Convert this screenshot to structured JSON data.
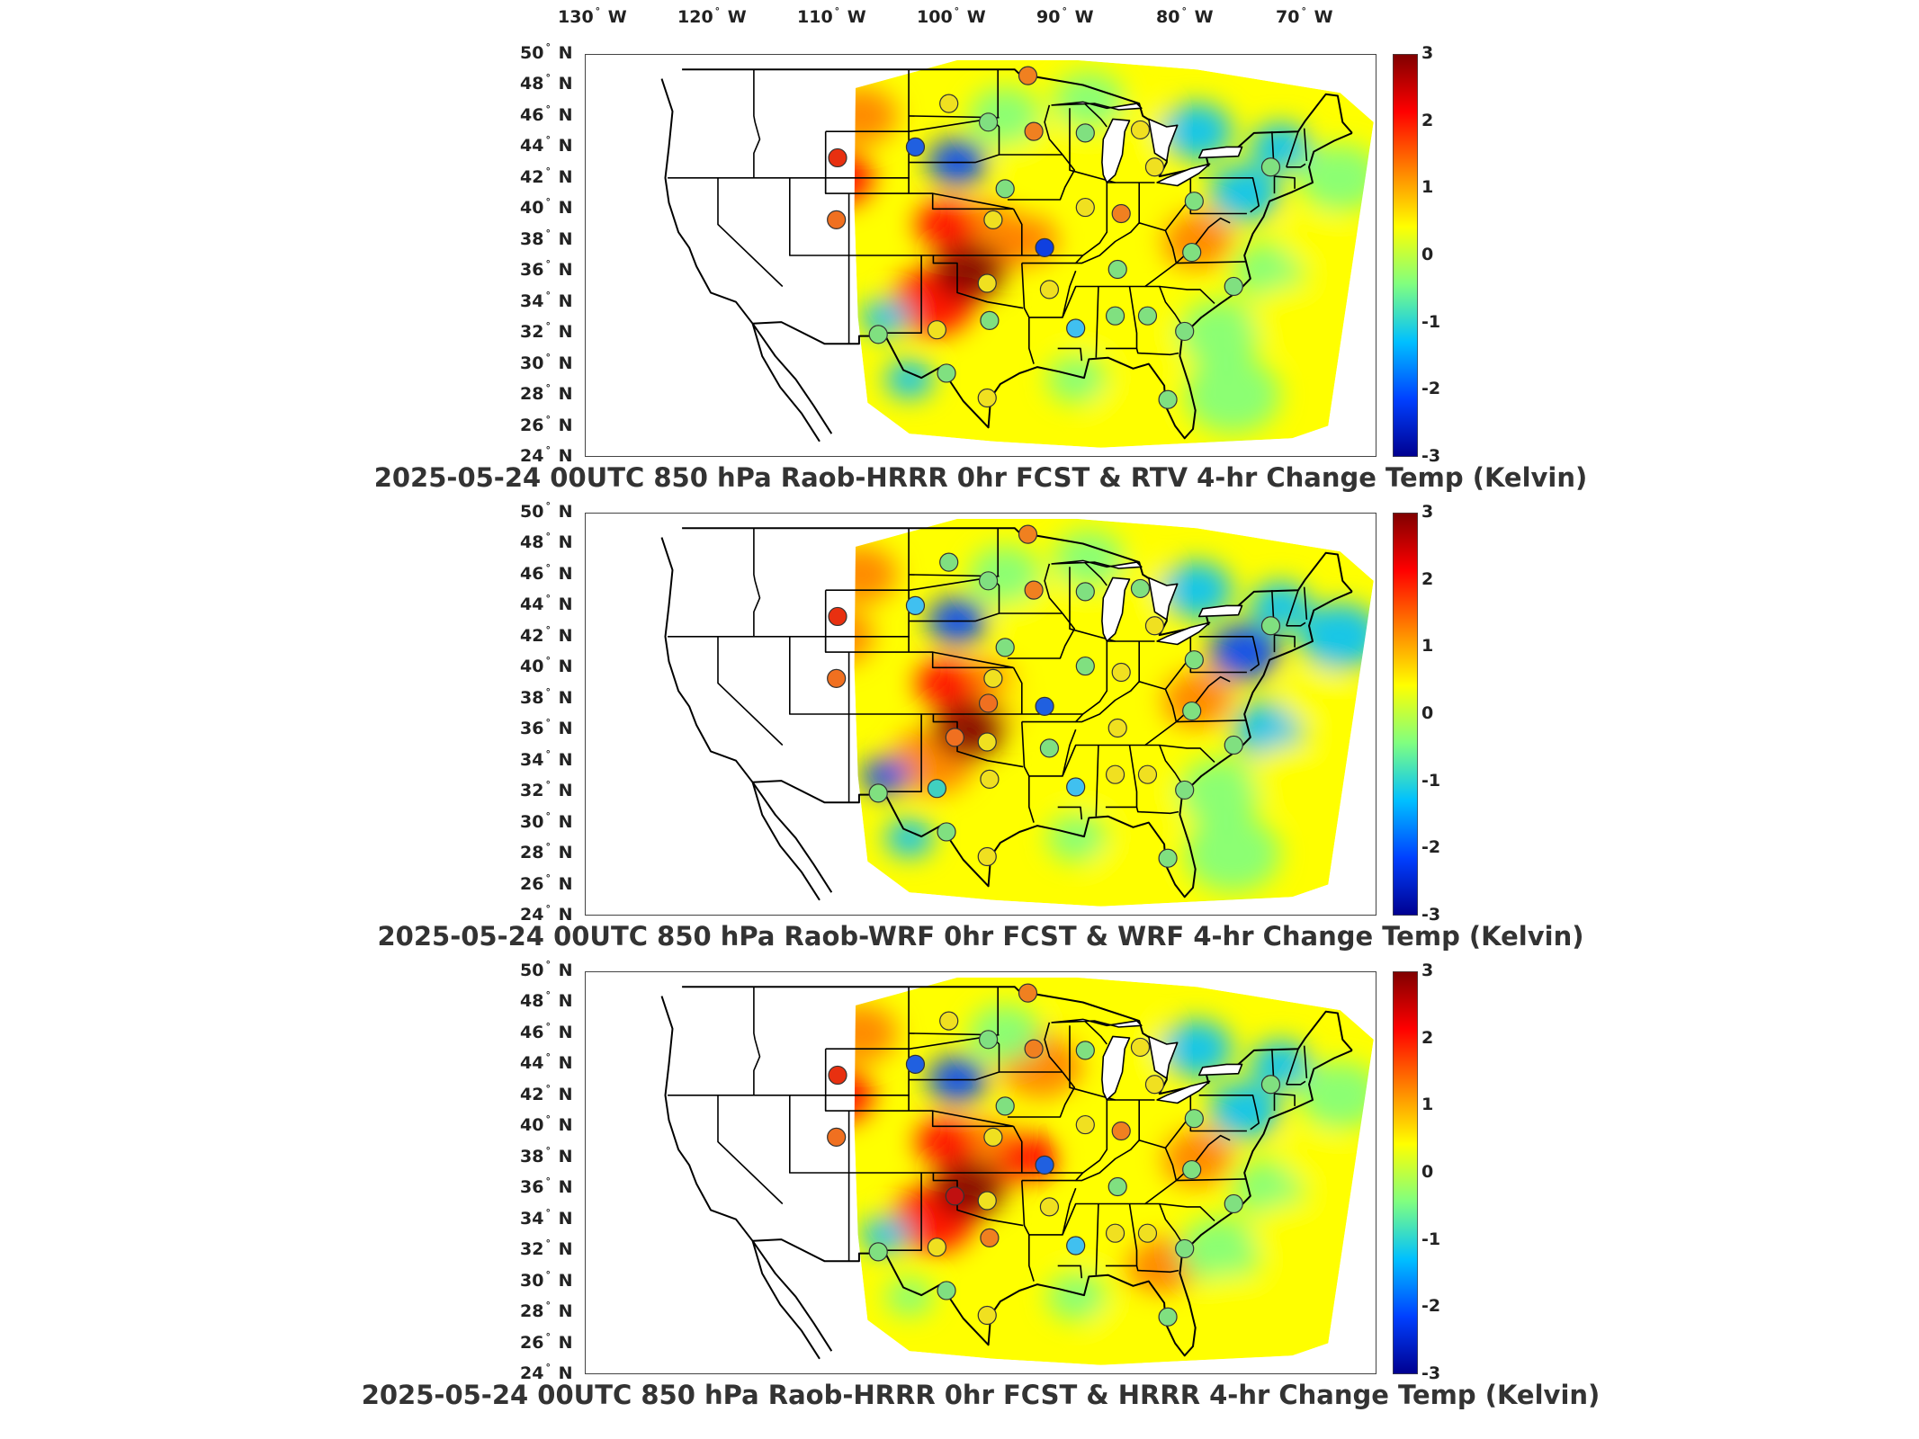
{
  "figure": {
    "lon_labels": [
      "130",
      "120",
      "110",
      "100",
      "90",
      "80",
      "70"
    ],
    "lon_suffix": "W",
    "lat_labels": [
      "50",
      "48",
      "46",
      "44",
      "42",
      "40",
      "38",
      "36",
      "34",
      "32",
      "30",
      "28",
      "26",
      "24"
    ],
    "lat_suffix": "N",
    "degree_symbol": "°",
    "colorbar_ticks": [
      "3",
      "2",
      "1",
      "0",
      "-1",
      "-2",
      "-3"
    ],
    "colormap": [
      "#7f0000",
      "#ff0000",
      "#ff8000",
      "#ffff00",
      "#80ff80",
      "#00c0ff",
      "#0040ff",
      "#00008f"
    ]
  },
  "panels": [
    {
      "title": "2025-05-24 00UTC 850 hPa Raob-HRRR 0hr FCST & RTV 4-hr Change Temp (Kelvin)",
      "stations": [
        {
          "lon": -110.0,
          "lat": 43.3,
          "color": "#e83010"
        },
        {
          "lon": -110.1,
          "lat": 39.3,
          "color": "#f07020"
        },
        {
          "lon": -103.5,
          "lat": 44.0,
          "color": "#2060e0"
        },
        {
          "lon": -100.7,
          "lat": 46.8,
          "color": "#f0e020"
        },
        {
          "lon": -97.4,
          "lat": 45.6,
          "color": "#80e080"
        },
        {
          "lon": -94.1,
          "lat": 48.6,
          "color": "#f08020"
        },
        {
          "lon": -93.6,
          "lat": 45.0,
          "color": "#f08020"
        },
        {
          "lon": -89.3,
          "lat": 44.9,
          "color": "#80e080"
        },
        {
          "lon": -84.7,
          "lat": 45.1,
          "color": "#f0e020"
        },
        {
          "lon": -83.5,
          "lat": 42.7,
          "color": "#f0e020"
        },
        {
          "lon": -73.8,
          "lat": 42.7,
          "color": "#80e080"
        },
        {
          "lon": -96.0,
          "lat": 41.3,
          "color": "#80e080"
        },
        {
          "lon": -89.3,
          "lat": 40.1,
          "color": "#f0e020"
        },
        {
          "lon": -86.3,
          "lat": 39.7,
          "color": "#f08020"
        },
        {
          "lon": -80.2,
          "lat": 40.5,
          "color": "#80e080"
        },
        {
          "lon": -97.0,
          "lat": 39.3,
          "color": "#f0e020"
        },
        {
          "lon": -92.7,
          "lat": 37.5,
          "color": "#1040e0"
        },
        {
          "lon": -97.5,
          "lat": 35.2,
          "color": "#f0e020"
        },
        {
          "lon": -92.3,
          "lat": 34.8,
          "color": "#f0e020"
        },
        {
          "lon": -86.6,
          "lat": 36.1,
          "color": "#80e080"
        },
        {
          "lon": -80.4,
          "lat": 37.2,
          "color": "#80e080"
        },
        {
          "lon": -101.7,
          "lat": 32.2,
          "color": "#f0e020"
        },
        {
          "lon": -97.3,
          "lat": 32.8,
          "color": "#80e080"
        },
        {
          "lon": -90.1,
          "lat": 32.3,
          "color": "#40c0f0"
        },
        {
          "lon": -86.8,
          "lat": 33.1,
          "color": "#80e080"
        },
        {
          "lon": -84.1,
          "lat": 33.1,
          "color": "#80e080"
        },
        {
          "lon": -81.0,
          "lat": 32.1,
          "color": "#80e080"
        },
        {
          "lon": -106.6,
          "lat": 31.9,
          "color": "#80e080"
        },
        {
          "lon": -100.9,
          "lat": 29.4,
          "color": "#80e080"
        },
        {
          "lon": -97.5,
          "lat": 27.8,
          "color": "#f0e020"
        },
        {
          "lon": -82.4,
          "lat": 27.7,
          "color": "#80e080"
        },
        {
          "lon": -76.9,
          "lat": 35.0,
          "color": "#80e080"
        }
      ]
    },
    {
      "title": "2025-05-24 00UTC 850 hPa Raob-WRF 0hr FCST & WRF 4-hr Change Temp (Kelvin)",
      "stations": [
        {
          "lon": -110.0,
          "lat": 43.3,
          "color": "#e83010"
        },
        {
          "lon": -110.1,
          "lat": 39.3,
          "color": "#f07020"
        },
        {
          "lon": -103.5,
          "lat": 44.0,
          "color": "#40c0f0"
        },
        {
          "lon": -100.7,
          "lat": 46.8,
          "color": "#80e080"
        },
        {
          "lon": -97.4,
          "lat": 45.6,
          "color": "#80e080"
        },
        {
          "lon": -94.1,
          "lat": 48.6,
          "color": "#f08020"
        },
        {
          "lon": -93.6,
          "lat": 45.0,
          "color": "#f08020"
        },
        {
          "lon": -89.3,
          "lat": 44.9,
          "color": "#80e080"
        },
        {
          "lon": -84.7,
          "lat": 45.1,
          "color": "#80e080"
        },
        {
          "lon": -83.5,
          "lat": 42.7,
          "color": "#f0e020"
        },
        {
          "lon": -73.8,
          "lat": 42.7,
          "color": "#80e080"
        },
        {
          "lon": -96.0,
          "lat": 41.3,
          "color": "#80e080"
        },
        {
          "lon": -89.3,
          "lat": 40.1,
          "color": "#80e080"
        },
        {
          "lon": -86.3,
          "lat": 39.7,
          "color": "#f0e020"
        },
        {
          "lon": -80.2,
          "lat": 40.5,
          "color": "#80e080"
        },
        {
          "lon": -97.0,
          "lat": 39.3,
          "color": "#f0e020"
        },
        {
          "lon": -92.7,
          "lat": 37.5,
          "color": "#2060e0"
        },
        {
          "lon": -97.5,
          "lat": 35.2,
          "color": "#f0e020"
        },
        {
          "lon": -92.3,
          "lat": 34.8,
          "color": "#80e080"
        },
        {
          "lon": -86.6,
          "lat": 36.1,
          "color": "#f0e020"
        },
        {
          "lon": -80.4,
          "lat": 37.2,
          "color": "#80e080"
        },
        {
          "lon": -101.7,
          "lat": 32.2,
          "color": "#40d0c0"
        },
        {
          "lon": -97.3,
          "lat": 32.8,
          "color": "#f0e020"
        },
        {
          "lon": -90.1,
          "lat": 32.3,
          "color": "#40c0f0"
        },
        {
          "lon": -86.8,
          "lat": 33.1,
          "color": "#f0e020"
        },
        {
          "lon": -84.1,
          "lat": 33.1,
          "color": "#f0e020"
        },
        {
          "lon": -81.0,
          "lat": 32.1,
          "color": "#80e080"
        },
        {
          "lon": -106.6,
          "lat": 31.9,
          "color": "#80e080"
        },
        {
          "lon": -100.9,
          "lat": 29.4,
          "color": "#80e080"
        },
        {
          "lon": -97.5,
          "lat": 27.8,
          "color": "#f0e020"
        },
        {
          "lon": -82.4,
          "lat": 27.7,
          "color": "#80e080"
        },
        {
          "lon": -76.9,
          "lat": 35.0,
          "color": "#80e080"
        },
        {
          "lon": -100.2,
          "lat": 35.5,
          "color": "#f07020"
        },
        {
          "lon": -97.4,
          "lat": 37.7,
          "color": "#f07020"
        }
      ]
    },
    {
      "title": "2025-05-24 00UTC 850 hPa Raob-HRRR 0hr FCST & HRRR 4-hr Change Temp (Kelvin)",
      "stations": [
        {
          "lon": -110.0,
          "lat": 43.3,
          "color": "#e83010"
        },
        {
          "lon": -110.1,
          "lat": 39.3,
          "color": "#f07020"
        },
        {
          "lon": -103.5,
          "lat": 44.0,
          "color": "#2060e0"
        },
        {
          "lon": -100.7,
          "lat": 46.8,
          "color": "#f0e020"
        },
        {
          "lon": -97.4,
          "lat": 45.6,
          "color": "#80e080"
        },
        {
          "lon": -94.1,
          "lat": 48.6,
          "color": "#f08020"
        },
        {
          "lon": -93.6,
          "lat": 45.0,
          "color": "#f08020"
        },
        {
          "lon": -89.3,
          "lat": 44.9,
          "color": "#80e080"
        },
        {
          "lon": -84.7,
          "lat": 45.1,
          "color": "#f0e020"
        },
        {
          "lon": -83.5,
          "lat": 42.7,
          "color": "#f0e020"
        },
        {
          "lon": -73.8,
          "lat": 42.7,
          "color": "#80e080"
        },
        {
          "lon": -96.0,
          "lat": 41.3,
          "color": "#80e080"
        },
        {
          "lon": -89.3,
          "lat": 40.1,
          "color": "#f0e020"
        },
        {
          "lon": -86.3,
          "lat": 39.7,
          "color": "#f08020"
        },
        {
          "lon": -80.2,
          "lat": 40.5,
          "color": "#80e080"
        },
        {
          "lon": -97.0,
          "lat": 39.3,
          "color": "#f0e020"
        },
        {
          "lon": -92.7,
          "lat": 37.5,
          "color": "#2060e0"
        },
        {
          "lon": -97.5,
          "lat": 35.2,
          "color": "#f0e020"
        },
        {
          "lon": -92.3,
          "lat": 34.8,
          "color": "#f0e020"
        },
        {
          "lon": -86.6,
          "lat": 36.1,
          "color": "#80e080"
        },
        {
          "lon": -80.4,
          "lat": 37.2,
          "color": "#80e080"
        },
        {
          "lon": -101.7,
          "lat": 32.2,
          "color": "#f0e020"
        },
        {
          "lon": -97.3,
          "lat": 32.8,
          "color": "#f08020"
        },
        {
          "lon": -90.1,
          "lat": 32.3,
          "color": "#40c0f0"
        },
        {
          "lon": -86.8,
          "lat": 33.1,
          "color": "#f0e020"
        },
        {
          "lon": -84.1,
          "lat": 33.1,
          "color": "#f0e020"
        },
        {
          "lon": -81.0,
          "lat": 32.1,
          "color": "#80e080"
        },
        {
          "lon": -106.6,
          "lat": 31.9,
          "color": "#80e080"
        },
        {
          "lon": -100.9,
          "lat": 29.4,
          "color": "#80e080"
        },
        {
          "lon": -97.5,
          "lat": 27.8,
          "color": "#f0e020"
        },
        {
          "lon": -82.4,
          "lat": 27.7,
          "color": "#80e080"
        },
        {
          "lon": -76.9,
          "lat": 35.0,
          "color": "#80e080"
        },
        {
          "lon": -100.2,
          "lat": 35.5,
          "color": "#c01010"
        }
      ]
    }
  ]
}
